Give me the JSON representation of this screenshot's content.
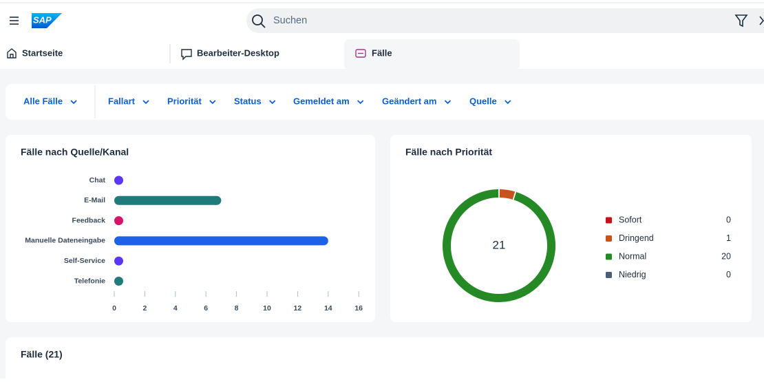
{
  "header": {
    "logo": "SAP",
    "search_placeholder": "Suchen"
  },
  "tabs": [
    "Startseite",
    "Bearbeiter-Desktop",
    "Fälle"
  ],
  "filters": [
    "Alle Fälle",
    "Fallart",
    "Priorität",
    "Status",
    "Gemeldet am",
    "Geändert am",
    "Quelle"
  ],
  "chart_data": [
    {
      "type": "bar",
      "orientation": "horizontal",
      "title": "Fälle nach Quelle/Kanal",
      "categories": [
        "Chat",
        "E-Mail",
        "Feedback",
        "Manuelle Dateneingabe",
        "Self-Service",
        "Telefonie"
      ],
      "values": [
        0,
        7,
        0,
        14,
        0,
        0
      ],
      "colors": [
        "#5b37f5",
        "#1f7a7a",
        "#d5156a",
        "#1d62e6",
        "#5b37f5",
        "#1f7a7a"
      ],
      "xlim": [
        0,
        16
      ],
      "xticks": [
        0,
        2,
        4,
        6,
        8,
        10,
        12,
        14,
        16
      ]
    },
    {
      "type": "donut",
      "title": "Fälle nach Priorität",
      "categories": [
        "Sofort",
        "Dringend",
        "Normal",
        "Niedrig"
      ],
      "values": [
        0,
        1,
        20,
        0
      ],
      "colors": [
        "#c8101c",
        "#c9531d",
        "#258a25",
        "#475e75"
      ],
      "total": 21,
      "legend": "right"
    }
  ],
  "cases": {
    "title": "Fälle (21)"
  }
}
